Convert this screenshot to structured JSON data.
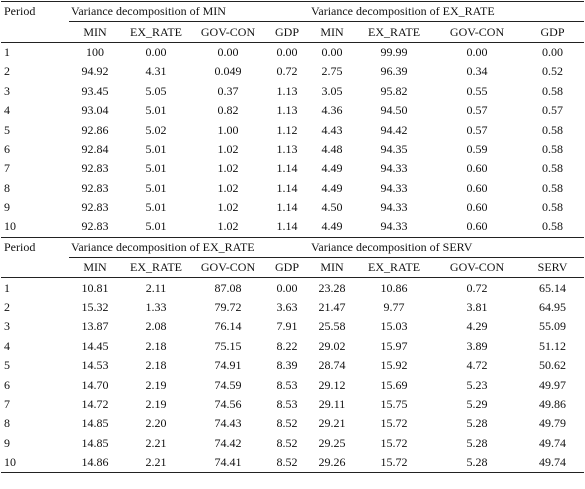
{
  "panels": [
    {
      "period": "Period",
      "groups": [
        "Variance decomposition of MIN",
        "Variance decomposition of EX_RATE"
      ],
      "columns": [
        "MIN",
        "EX_RATE",
        "GOV-CON",
        "GDP",
        "MIN",
        "EX_RATE",
        "GOV-CON",
        "GDP"
      ],
      "rows": [
        [
          "1",
          "100",
          "0.00",
          "0.00",
          "0.00",
          "0.00",
          "99.99",
          "0.00",
          "0.00"
        ],
        [
          "2",
          "94.92",
          "4.31",
          "0.049",
          "0.72",
          "2.75",
          "96.39",
          "0.34",
          "0.52"
        ],
        [
          "3",
          "93.45",
          "5.05",
          "0.37",
          "1.13",
          "3.05",
          "95.82",
          "0.55",
          "0.58"
        ],
        [
          "4",
          "93.04",
          "5.01",
          "0.82",
          "1.13",
          "4.36",
          "94.50",
          "0.57",
          "0.57"
        ],
        [
          "5",
          "92.86",
          "5.02",
          "1.00",
          "1.12",
          "4.43",
          "94.42",
          "0.57",
          "0.58"
        ],
        [
          "6",
          "92.84",
          "5.01",
          "1.02",
          "1.13",
          "4.48",
          "94.35",
          "0.59",
          "0.58"
        ],
        [
          "7",
          "92.83",
          "5.01",
          "1.02",
          "1.14",
          "4.49",
          "94.33",
          "0.60",
          "0.58"
        ],
        [
          "8",
          "92.83",
          "5.01",
          "1.02",
          "1.14",
          "4.49",
          "94.33",
          "0.60",
          "0.58"
        ],
        [
          "9",
          "92.83",
          "5.01",
          "1.02",
          "1.14",
          "4.50",
          "94.33",
          "0.60",
          "0.58"
        ],
        [
          "10",
          "92.83",
          "5.01",
          "1.02",
          "1.14",
          "4.49",
          "94.33",
          "0.60",
          "0.58"
        ]
      ]
    },
    {
      "period": "Period",
      "groups": [
        "Variance decomposition of EX_RATE",
        "Variance decomposition of SERV"
      ],
      "columns": [
        "MIN",
        "EX_RATE",
        "GOV-CON",
        "GDP",
        "MIN",
        "EX_RATE",
        "GOV-CON",
        "SERV"
      ],
      "rows": [
        [
          "1",
          "10.81",
          "2.11",
          "87.08",
          "0.00",
          "23.28",
          "10.86",
          "0.72",
          "65.14"
        ],
        [
          "2",
          "15.32",
          "1.33",
          "79.72",
          "3.63",
          "21.47",
          "9.77",
          "3.81",
          "64.95"
        ],
        [
          "3",
          "13.87",
          "2.08",
          "76.14",
          "7.91",
          "25.58",
          "15.03",
          "4.29",
          "55.09"
        ],
        [
          "4",
          "14.45",
          "2.18",
          "75.15",
          "8.22",
          "29.02",
          "15.97",
          "3.89",
          "51.12"
        ],
        [
          "5",
          "14.53",
          "2.18",
          "74.91",
          "8.39",
          "28.74",
          "15.92",
          "4.72",
          "50.62"
        ],
        [
          "6",
          "14.70",
          "2.19",
          "74.59",
          "8.53",
          "29.12",
          "15.69",
          "5.23",
          "49.97"
        ],
        [
          "7",
          "14.72",
          "2.19",
          "74.56",
          "8.53",
          "29.11",
          "15.75",
          "5.29",
          "49.86"
        ],
        [
          "8",
          "14.85",
          "2.20",
          "74.43",
          "8.52",
          "29.21",
          "15.72",
          "5.28",
          "49.79"
        ],
        [
          "9",
          "14.85",
          "2.21",
          "74.42",
          "8.52",
          "29.25",
          "15.72",
          "5.28",
          "49.74"
        ],
        [
          "10",
          "14.86",
          "2.21",
          "74.41",
          "8.52",
          "29.26",
          "15.72",
          "5.28",
          "49.74"
        ]
      ]
    }
  ]
}
